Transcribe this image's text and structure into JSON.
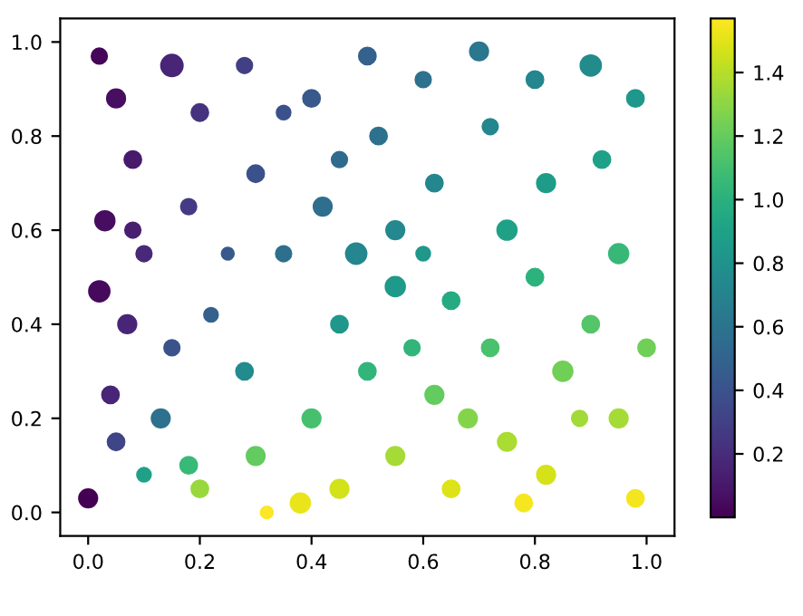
{
  "chart_data": {
    "type": "bubble",
    "marker": "circle",
    "grid": false,
    "xlim": [
      -0.05,
      1.05
    ],
    "ylim": [
      -0.05,
      1.05
    ],
    "xticks": [
      {
        "value": 0,
        "label": "0.0"
      },
      0.2,
      0.4,
      0.6,
      0.8,
      {
        "value": 1,
        "label": "1.0"
      }
    ],
    "yticks": [
      {
        "value": 0,
        "label": "0.0"
      },
      0.2,
      0.4,
      0.6,
      0.8,
      {
        "value": 1,
        "label": "1.0"
      }
    ],
    "clim": [
      0.0,
      1.57
    ],
    "cticks": [
      0.2,
      0.4,
      0.6,
      0.8,
      {
        "value": 1,
        "label": "1.0"
      },
      1.2,
      1.4
    ],
    "x": [
      0.02,
      0.05,
      0.08,
      0.03,
      0.1,
      0.02,
      0.07,
      0.04,
      0.0,
      0.15,
      0.2,
      0.18,
      0.22,
      0.13,
      0.18,
      0.1,
      0.28,
      0.3,
      0.35,
      0.28,
      0.3,
      0.38,
      0.4,
      0.42,
      0.45,
      0.4,
      0.45,
      0.5,
      0.52,
      0.55,
      0.55,
      0.5,
      0.55,
      0.6,
      0.62,
      0.65,
      0.62,
      0.65,
      0.7,
      0.72,
      0.75,
      0.72,
      0.75,
      0.8,
      0.82,
      0.8,
      0.85,
      0.82,
      0.9,
      0.92,
      0.95,
      0.9,
      0.95,
      0.98,
      0.98,
      1.0,
      0.25,
      0.6,
      0.35,
      0.08,
      0.58,
      0.88,
      0.32,
      0.2,
      0.45,
      0.05,
      0.68,
      0.78,
      0.15,
      0.48
    ],
    "values": [
      0.97,
      0.88,
      0.75,
      0.62,
      0.55,
      0.47,
      0.4,
      0.25,
      0.03,
      0.95,
      0.85,
      0.65,
      0.42,
      0.2,
      0.1,
      0.08,
      0.95,
      0.72,
      0.55,
      0.3,
      0.12,
      0.02,
      0.88,
      0.65,
      0.4,
      0.2,
      0.05,
      0.97,
      0.8,
      0.6,
      0.48,
      0.3,
      0.12,
      0.92,
      0.7,
      0.45,
      0.25,
      0.05,
      0.98,
      0.82,
      0.6,
      0.35,
      0.15,
      0.92,
      0.7,
      0.5,
      0.3,
      0.08,
      0.95,
      0.75,
      0.55,
      0.4,
      0.2,
      0.03,
      0.88,
      0.35,
      0.55,
      0.55,
      0.85,
      0.6,
      0.35,
      0.2,
      0.0,
      0.05,
      0.75,
      0.15,
      0.2,
      0.02,
      0.35,
      0.55
    ],
    "cvalues": [
      0.02,
      0.06,
      0.11,
      0.05,
      0.18,
      0.04,
      0.17,
      0.16,
      0.0,
      0.16,
      0.23,
      0.27,
      0.48,
      0.58,
      1.06,
      0.9,
      0.29,
      0.39,
      0.57,
      0.75,
      1.19,
      1.52,
      0.43,
      0.57,
      0.84,
      1.11,
      1.46,
      0.48,
      0.58,
      0.74,
      0.85,
      1.03,
      1.36,
      0.58,
      0.72,
      0.96,
      1.19,
      1.49,
      0.62,
      0.72,
      0.9,
      1.12,
      1.37,
      0.72,
      0.86,
      1.01,
      1.23,
      1.47,
      0.76,
      0.89,
      1.05,
      1.15,
      1.36,
      1.54,
      0.84,
      1.23,
      0.43,
      0.83,
      0.39,
      0.13,
      1.03,
      1.35,
      1.57,
      1.33,
      0.54,
      0.32,
      1.28,
      1.55,
      0.4,
      0.72
    ],
    "sizes": [
      0.5,
      0.7,
      0.6,
      0.8,
      0.5,
      0.9,
      0.7,
      0.6,
      0.7,
      1.0,
      0.6,
      0.5,
      0.4,
      0.7,
      0.6,
      0.4,
      0.5,
      0.6,
      0.5,
      0.6,
      0.7,
      0.8,
      0.6,
      0.7,
      0.6,
      0.7,
      0.7,
      0.6,
      0.6,
      0.7,
      0.8,
      0.6,
      0.7,
      0.5,
      0.6,
      0.6,
      0.7,
      0.6,
      0.7,
      0.5,
      0.8,
      0.6,
      0.7,
      0.6,
      0.7,
      0.6,
      0.8,
      0.7,
      0.9,
      0.6,
      0.8,
      0.6,
      0.7,
      0.6,
      0.6,
      0.6,
      0.3,
      0.4,
      0.4,
      0.5,
      0.5,
      0.5,
      0.3,
      0.6,
      0.5,
      0.6,
      0.7,
      0.6,
      0.5,
      0.9
    ]
  }
}
